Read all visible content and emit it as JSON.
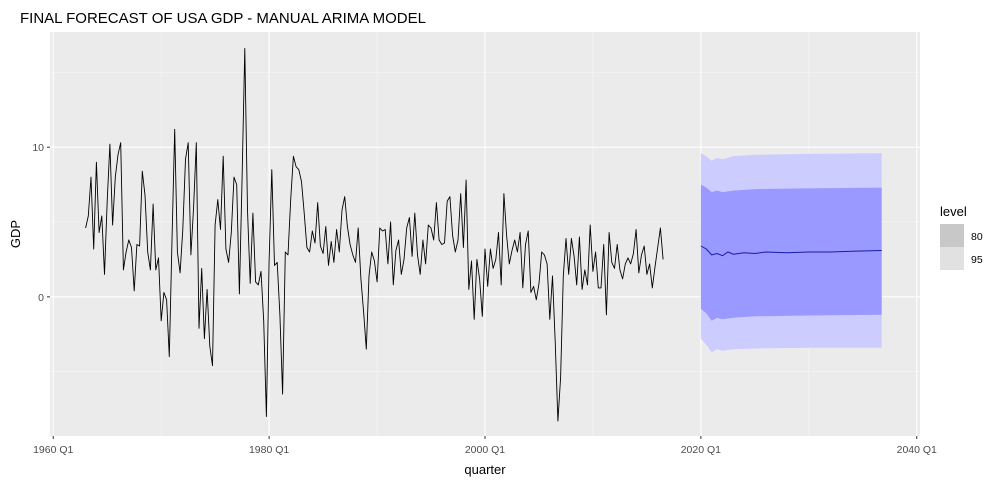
{
  "chart_data": {
    "type": "line",
    "title": "FINAL FORECAST OF USA GDP - MANUAL ARIMA MODEL",
    "xlabel": "quarter",
    "ylabel": "GDP",
    "x_ticks": [
      {
        "value": 1960,
        "label": "1960 Q1"
      },
      {
        "value": 1980,
        "label": "1980 Q1"
      },
      {
        "value": 2000,
        "label": "2000 Q1"
      },
      {
        "value": 2020,
        "label": "2020 Q1"
      },
      {
        "value": 2040,
        "label": "2040 Q1"
      }
    ],
    "y_ticks": [
      {
        "value": 0,
        "label": "0"
      },
      {
        "value": 10,
        "label": "10"
      }
    ],
    "xlim": [
      1959.7,
      2040.3
    ],
    "ylim": [
      -9.3,
      17.7
    ],
    "grid": true,
    "legend": {
      "title": "level",
      "position": "right",
      "entries": [
        {
          "label": "80",
          "color": "#c8c8c8"
        },
        {
          "label": "95",
          "color": "#e1e1e1"
        }
      ]
    },
    "colors": {
      "panel_bg": "#ebebeb",
      "grid_major": "#ffffff",
      "history_line": "#000000",
      "forecast_line": "#1a1aaa",
      "band_95": "#ccccff",
      "band_80": "#9999ff"
    },
    "history": {
      "start": 1963.0,
      "step": 0.25,
      "values": [
        4.6,
        5.4,
        8.0,
        3.2,
        9.0,
        4.3,
        5.4,
        1.5,
        6.4,
        10.2,
        4.8,
        8.0,
        9.5,
        10.3,
        1.8,
        3.0,
        3.8,
        3.3,
        0.4,
        3.5,
        3.4,
        8.4,
        6.8,
        3.0,
        1.8,
        6.2,
        1.8,
        2.6,
        -1.6,
        0.3,
        -0.2,
        -4.0,
        3.8,
        11.2,
        3.0,
        1.6,
        4.5,
        9.2,
        10.3,
        2.8,
        6.0,
        10.3,
        -2.1,
        1.9,
        -2.8,
        0.5,
        -3.3,
        -4.6,
        4.8,
        6.5,
        4.5,
        9.4,
        3.2,
        2.3,
        4.3,
        8.0,
        7.5,
        0.2,
        8.0,
        16.6,
        5.8,
        0.9,
        5.6,
        1.0,
        0.8,
        1.7,
        -1.6,
        -8.0,
        2.4,
        8.5,
        2.1,
        2.3,
        -1.2,
        -6.5,
        3.0,
        2.8,
        6.5,
        9.4,
        8.7,
        8.5,
        7.7,
        5.6,
        3.3,
        3.0,
        4.4,
        3.6,
        6.3,
        3.4,
        2.9,
        4.7,
        2.1,
        3.7,
        2.3,
        4.5,
        3.0,
        5.8,
        6.7,
        4.7,
        3.5,
        2.8,
        2.3,
        4.6,
        1.2,
        -1.0,
        -3.5,
        1.4,
        3.0,
        2.4,
        1.0,
        4.6,
        4.4,
        4.5,
        2.2,
        5.0,
        0.8,
        3.1,
        3.8,
        1.5,
        2.5,
        4.6,
        5.3,
        2.7,
        5.6,
        2.8,
        1.5,
        3.8,
        2.2,
        4.8,
        4.6,
        3.8,
        6.3,
        3.8,
        3.5,
        3.6,
        6.4,
        6.7,
        4.1,
        3.0,
        3.8,
        6.9,
        3.3,
        7.8,
        0.5,
        2.4,
        -1.5,
        2.5,
        1.2,
        -1.3,
        3.2,
        0.7,
        3.2,
        1.9,
        2.5,
        4.3,
        0.8,
        6.9,
        4.1,
        2.2,
        3.1,
        3.8,
        3.0,
        4.3,
        0.6,
        3.5,
        4.4,
        0.3,
        0.7,
        -0.2,
        0.9,
        3.0,
        2.8,
        2.2,
        -1.5,
        1.4,
        -3.0,
        -8.3,
        -5.4,
        1.4,
        3.9,
        1.5,
        3.9,
        2.7,
        0.8,
        4.0,
        0.5,
        1.8,
        0.8,
        4.8,
        1.7,
        3.0,
        0.6,
        0.6,
        3.5,
        -1.2,
        4.3,
        2.3,
        1.9,
        3.5,
        1.8,
        1.2,
        2.2,
        2.6,
        2.2,
        2.9,
        4.5,
        1.6,
        2.8,
        3.4,
        1.5,
        2.2,
        0.6,
        2.0,
        3.3,
        4.6,
        2.5
      ]
    },
    "forecast": {
      "start": 2020.0,
      "end": 2036.75,
      "mean_points": [
        [
          2020.0,
          3.4
        ],
        [
          2020.5,
          3.2
        ],
        [
          2021.0,
          2.8
        ],
        [
          2021.5,
          2.9
        ],
        [
          2022.0,
          2.75
        ],
        [
          2022.5,
          3.0
        ],
        [
          2023.0,
          2.85
        ],
        [
          2024.0,
          2.95
        ],
        [
          2025.0,
          2.9
        ],
        [
          2026.0,
          3.0
        ],
        [
          2028.0,
          2.95
        ],
        [
          2030.0,
          3.0
        ],
        [
          2032.0,
          3.0
        ],
        [
          2034.0,
          3.05
        ],
        [
          2036.75,
          3.1
        ]
      ],
      "upper95": [
        [
          2020.0,
          9.6
        ],
        [
          2020.5,
          9.4
        ],
        [
          2021.0,
          9.1
        ],
        [
          2021.5,
          9.3
        ],
        [
          2022.0,
          9.2
        ],
        [
          2023.0,
          9.4
        ],
        [
          2025.0,
          9.5
        ],
        [
          2030.0,
          9.55
        ],
        [
          2036.75,
          9.6
        ]
      ],
      "upper80": [
        [
          2020.0,
          7.5
        ],
        [
          2020.5,
          7.3
        ],
        [
          2021.0,
          7.0
        ],
        [
          2021.5,
          7.1
        ],
        [
          2022.0,
          7.0
        ],
        [
          2023.0,
          7.1
        ],
        [
          2025.0,
          7.2
        ],
        [
          2030.0,
          7.25
        ],
        [
          2036.75,
          7.3
        ]
      ],
      "lower80": [
        [
          2020.0,
          -0.8
        ],
        [
          2020.5,
          -1.1
        ],
        [
          2021.0,
          -1.6
        ],
        [
          2021.5,
          -1.4
        ],
        [
          2022.0,
          -1.5
        ],
        [
          2023.0,
          -1.4
        ],
        [
          2025.0,
          -1.3
        ],
        [
          2030.0,
          -1.25
        ],
        [
          2036.75,
          -1.2
        ]
      ],
      "lower95": [
        [
          2020.0,
          -2.8
        ],
        [
          2020.5,
          -3.2
        ],
        [
          2021.0,
          -3.7
        ],
        [
          2021.5,
          -3.5
        ],
        [
          2022.0,
          -3.6
        ],
        [
          2023.0,
          -3.5
        ],
        [
          2025.0,
          -3.45
        ],
        [
          2030.0,
          -3.4
        ],
        [
          2036.75,
          -3.4
        ]
      ]
    }
  }
}
